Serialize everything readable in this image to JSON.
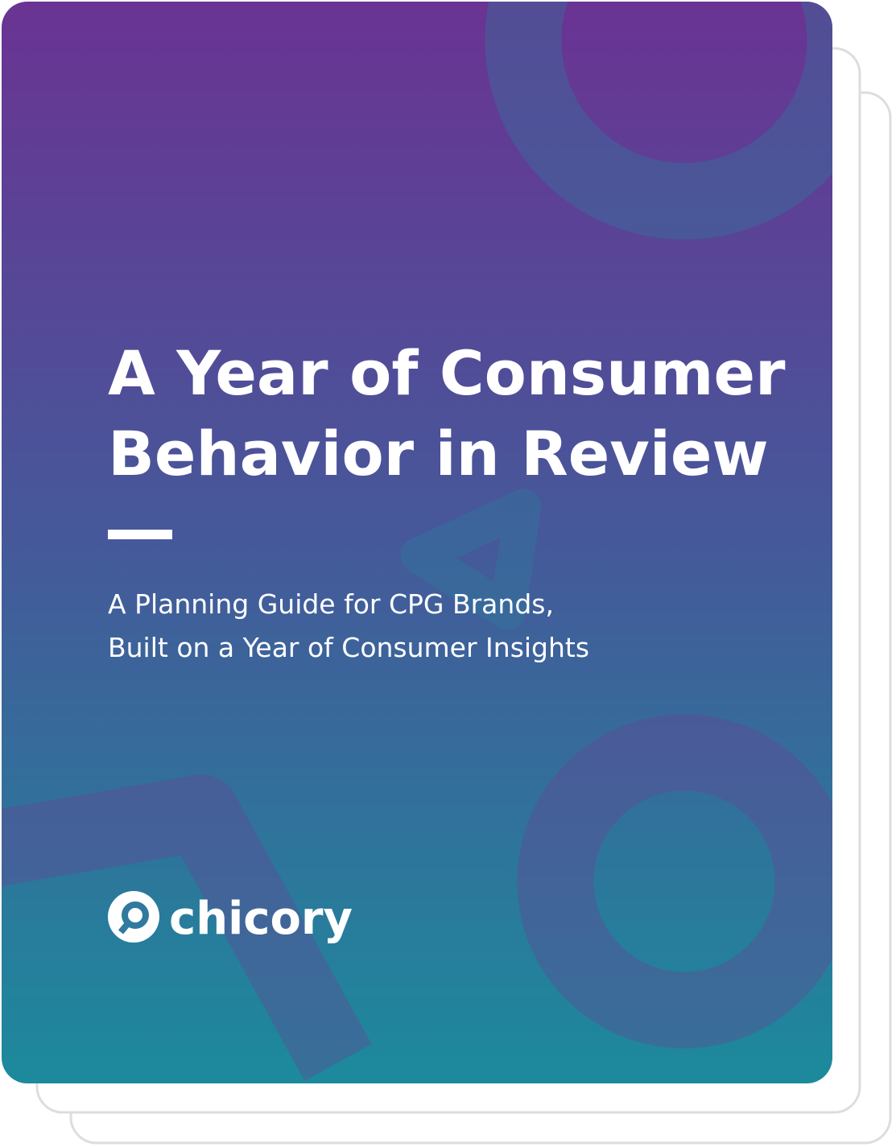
{
  "cover": {
    "title_lines": [
      "A Year of Consumer",
      "Behavior in Review"
    ],
    "subtitle_lines": [
      "A Planning Guide for CPG Brands,",
      "Built on a Year of Consumer Insights"
    ],
    "brand": "chicory"
  }
}
